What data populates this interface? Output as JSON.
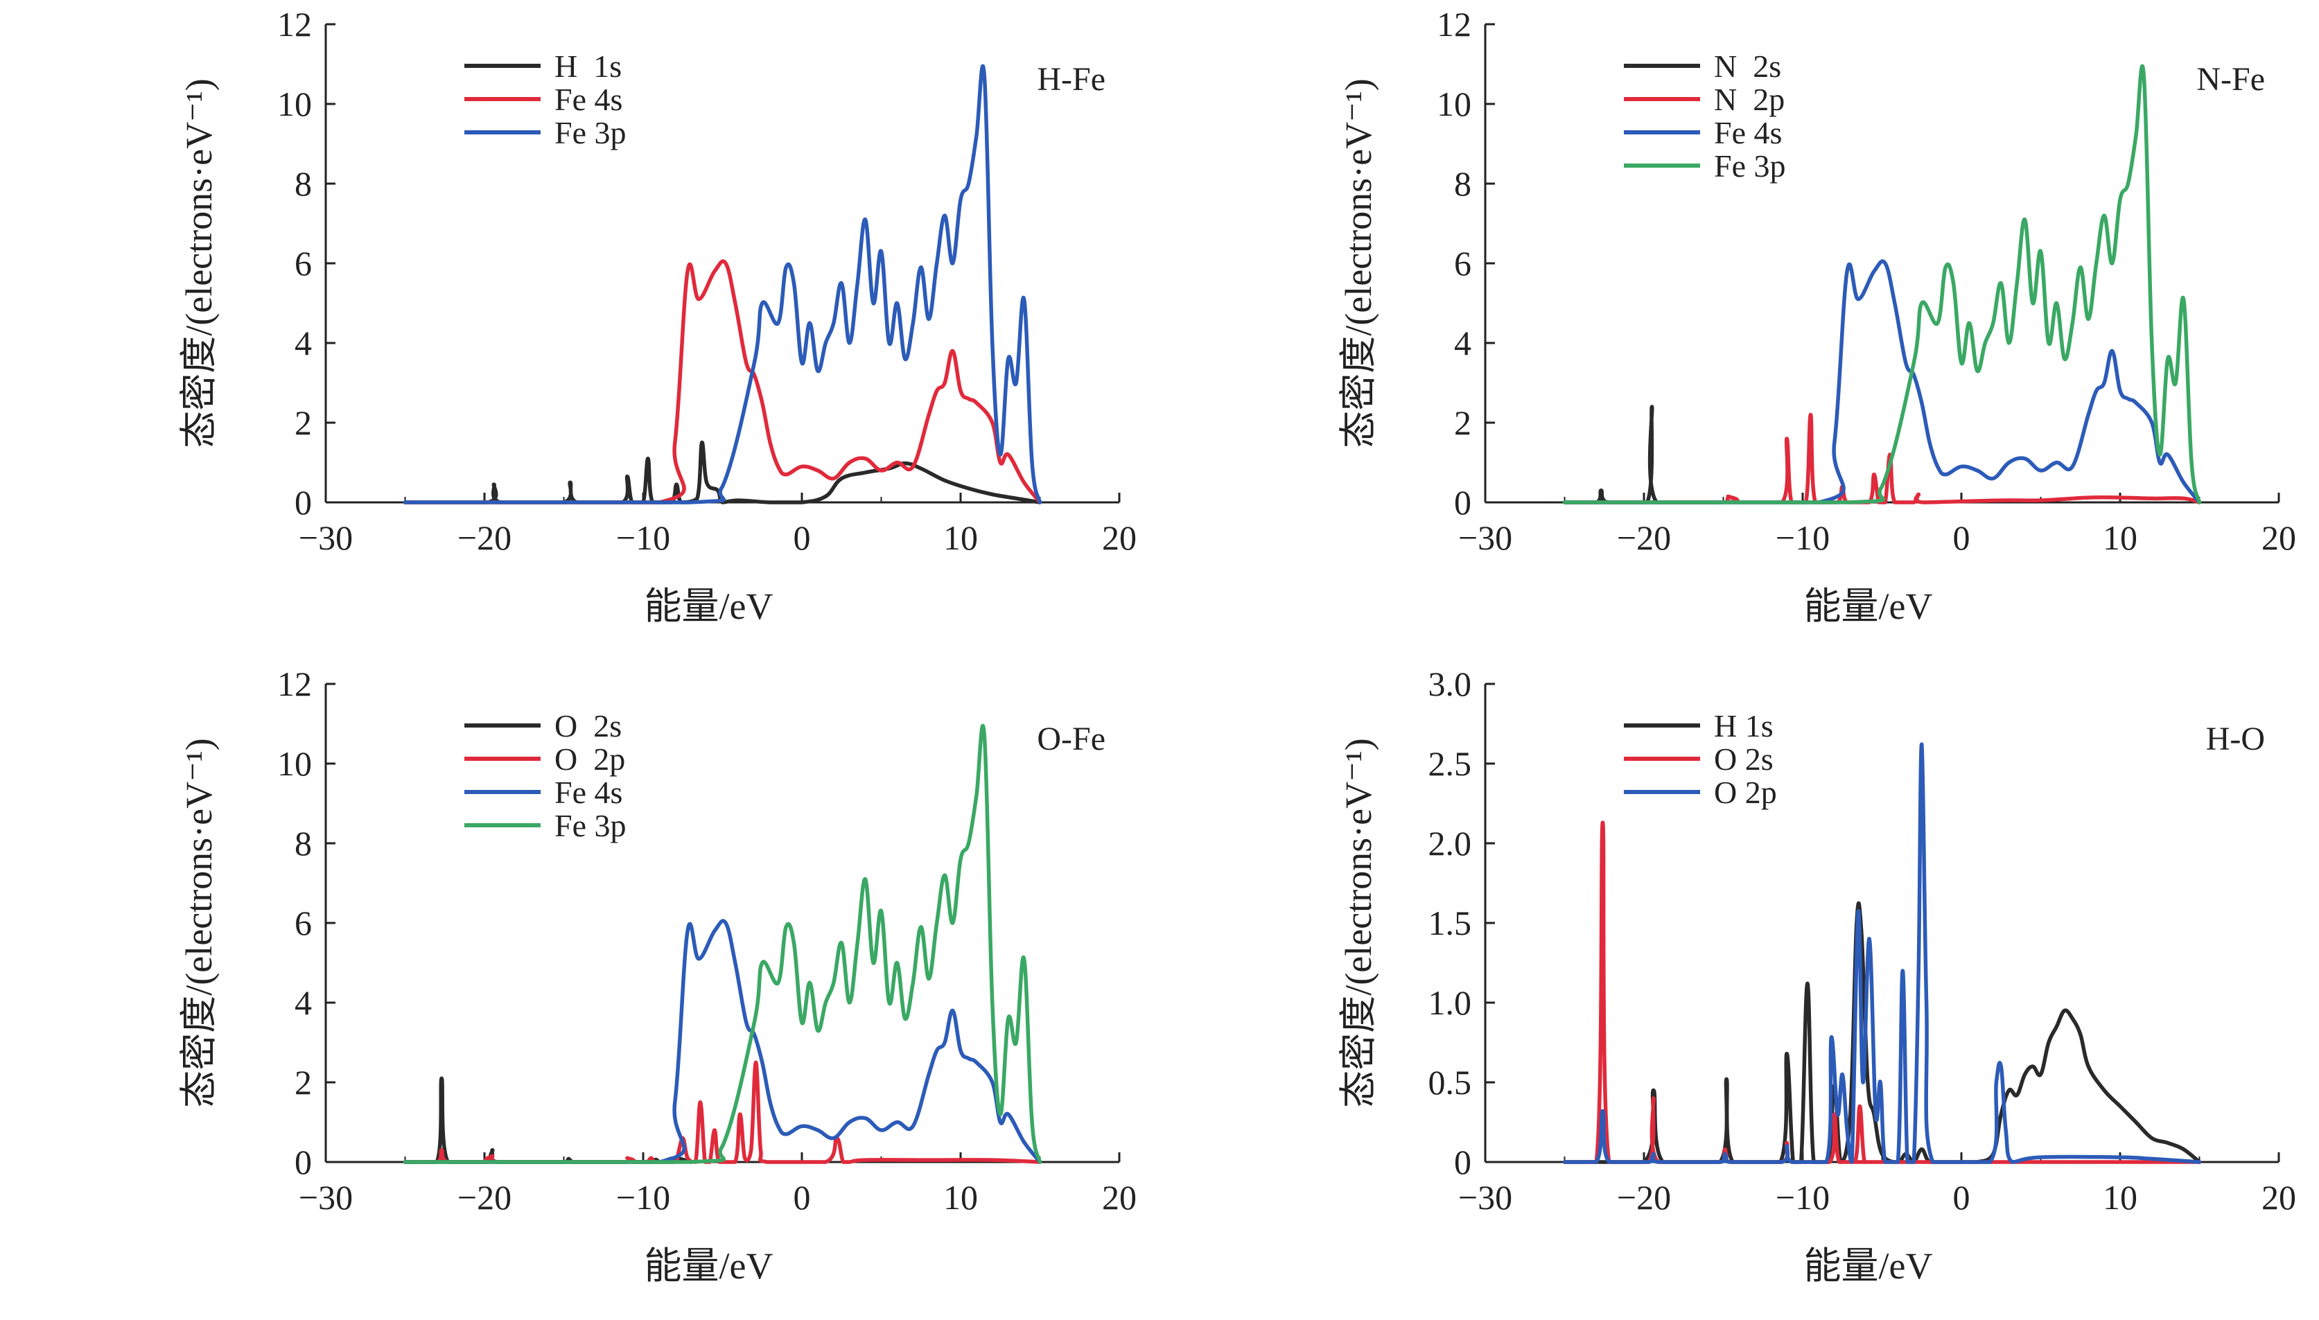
{
  "colors": {
    "black": "#2a2a2a",
    "red": "#e02a3b",
    "blue": "#2c5bb8",
    "green": "#3aa864",
    "axis": "#222222"
  },
  "chart_data": [
    {
      "type": "line",
      "title": "H-Fe",
      "xlabel": "能量/eV",
      "ylabel": "态密度/(electrons·eV⁻¹)",
      "xlim": [
        -30,
        20
      ],
      "ylim": [
        0,
        12
      ],
      "xticks": [
        "−30",
        "−20",
        "−10",
        "0",
        "10",
        "20"
      ],
      "yticks": [
        "0",
        "2",
        "4",
        "6",
        "8",
        "10",
        "12"
      ],
      "legend_position": "top-left",
      "series": [
        {
          "name": "H  1s",
          "color": "black",
          "x": [
            -25,
            -19.8,
            -19.4,
            -19,
            -15,
            -14.6,
            -14.2,
            -11.3,
            -11,
            -10.7,
            -10,
            -9.7,
            -9.4,
            -8.2,
            -7.9,
            -7.6,
            -6.6,
            -6.3,
            -6,
            -5.3,
            -5,
            -4,
            -2,
            0,
            1.5,
            2.5,
            4,
            5.5,
            6.5,
            7.5,
            9,
            10.5,
            12,
            13.5,
            15
          ],
          "y": [
            0,
            0,
            0.45,
            0,
            0,
            0.5,
            0,
            0,
            0.65,
            0,
            0,
            1.1,
            0,
            0,
            0.45,
            0,
            0.1,
            1.5,
            0.5,
            0.3,
            0,
            0.05,
            0,
            0,
            0.15,
            0.6,
            0.75,
            0.85,
            0.98,
            0.85,
            0.55,
            0.35,
            0.2,
            0.1,
            0
          ]
        },
        {
          "name": "Fe 4s",
          "color": "red",
          "x": [
            -25,
            -9,
            -8,
            -7.2,
            -6.5,
            -5.5,
            -4.8,
            -4.2,
            -3.5,
            -3,
            -2.5,
            -2,
            -1.5,
            -1,
            0,
            1,
            2,
            3,
            4,
            5,
            6,
            7,
            8,
            8.5,
            9,
            9.5,
            10,
            10.5,
            11,
            12,
            12.5,
            13,
            14,
            15
          ],
          "y": [
            0,
            0,
            1.5,
            5.8,
            5.1,
            5.8,
            6,
            5,
            3.5,
            3.2,
            2.5,
            1.5,
            0.9,
            0.7,
            0.9,
            0.8,
            0.6,
            1.0,
            1.1,
            0.8,
            1.0,
            0.9,
            2.2,
            2.8,
            3.0,
            3.8,
            2.8,
            2.6,
            2.5,
            2.0,
            1.0,
            1.2,
            0.5,
            0
          ]
        },
        {
          "name": "Fe 3p",
          "color": "blue",
          "x": [
            -25,
            -7,
            -5,
            -3,
            -2.5,
            -1.5,
            -1,
            -0.5,
            0,
            0.5,
            1,
            1.5,
            2,
            2.5,
            3,
            3.5,
            4,
            4.5,
            5,
            5.5,
            6,
            6.5,
            7,
            7.5,
            8,
            8.5,
            9,
            9.5,
            10,
            10.5,
            11,
            11.5,
            12,
            12.5,
            13,
            13.5,
            14,
            14.5,
            15
          ],
          "y": [
            0,
            0,
            0.4,
            3.5,
            5.0,
            4.5,
            5.9,
            5.5,
            3.5,
            4.5,
            3.3,
            4.0,
            4.5,
            5.5,
            4.0,
            5.5,
            7.1,
            5.0,
            6.3,
            4.0,
            5.0,
            3.6,
            4.5,
            5.9,
            4.6,
            6.0,
            7.2,
            6.0,
            7.6,
            8.0,
            9.2,
            10.7,
            4.0,
            1.2,
            3.6,
            3.0,
            5.1,
            1.0,
            0
          ]
        }
      ]
    },
    {
      "type": "line",
      "title": "N-Fe",
      "xlabel": "能量/eV",
      "ylabel": "态密度/(electrons·eV⁻¹)",
      "xlim": [
        -30,
        20
      ],
      "ylim": [
        0,
        12
      ],
      "xticks": [
        "−30",
        "−20",
        "−10",
        "0",
        "10",
        "20"
      ],
      "yticks": [
        "0",
        "2",
        "4",
        "6",
        "8",
        "10",
        "12"
      ],
      "legend_position": "top-left",
      "series": [
        {
          "name": "N  2s",
          "color": "black",
          "x": [
            -25,
            -23,
            -22.7,
            -22.3,
            -19.8,
            -19.5,
            -19.2,
            -15
          ],
          "y": [
            0,
            0,
            0.3,
            0,
            0,
            2.4,
            0,
            0
          ]
        },
        {
          "name": "N  2p",
          "color": "red",
          "x": [
            -25,
            -15,
            -14.7,
            -14.4,
            -11.3,
            -11,
            -10.7,
            -9.8,
            -9.5,
            -9.2,
            -7.8,
            -7.5,
            -7.2,
            -5.8,
            -5.5,
            -5.2,
            -4.8,
            -4.5,
            -4.2,
            -3,
            -2.7,
            -2.4,
            2.5,
            5,
            8,
            10,
            12,
            14,
            15
          ],
          "y": [
            0,
            0,
            0.15,
            0,
            0,
            1.6,
            0,
            0,
            2.2,
            0,
            0,
            0.4,
            0,
            0,
            0.7,
            0,
            0,
            1.2,
            0,
            0,
            0.2,
            0,
            0.05,
            0.05,
            0.12,
            0.12,
            0.1,
            0.1,
            0
          ]
        },
        {
          "name": "Fe 4s",
          "color": "blue",
          "x": [
            -25,
            -9,
            -8,
            -7.2,
            -6.5,
            -5.5,
            -4.8,
            -4.2,
            -3.5,
            -3,
            -2.5,
            -2,
            -1.5,
            -1,
            0,
            1,
            2,
            3,
            4,
            5,
            6,
            7,
            8,
            8.5,
            9,
            9.5,
            10,
            10.5,
            11,
            12,
            12.5,
            13,
            14,
            15
          ],
          "y": [
            0,
            0,
            1.5,
            5.8,
            5.1,
            5.8,
            6,
            5,
            3.5,
            3.2,
            2.5,
            1.5,
            0.9,
            0.7,
            0.9,
            0.8,
            0.6,
            1.0,
            1.1,
            0.8,
            1.0,
            0.9,
            2.2,
            2.8,
            3.0,
            3.8,
            2.8,
            2.6,
            2.5,
            2.0,
            1.0,
            1.2,
            0.5,
            0
          ]
        },
        {
          "name": "Fe 3p",
          "color": "green",
          "x": [
            -25,
            -7,
            -5,
            -3,
            -2.5,
            -1.5,
            -1,
            -0.5,
            0,
            0.5,
            1,
            1.5,
            2,
            2.5,
            3,
            3.5,
            4,
            4.5,
            5,
            5.5,
            6,
            6.5,
            7,
            7.5,
            8,
            8.5,
            9,
            9.5,
            10,
            10.5,
            11,
            11.5,
            12,
            12.5,
            13,
            13.5,
            14,
            14.5,
            15
          ],
          "y": [
            0,
            0,
            0.4,
            3.5,
            5.0,
            4.5,
            5.9,
            5.5,
            3.5,
            4.5,
            3.3,
            4.0,
            4.5,
            5.5,
            4.0,
            5.5,
            7.1,
            5.0,
            6.3,
            4.0,
            5.0,
            3.6,
            4.5,
            5.9,
            4.6,
            6.0,
            7.2,
            6.0,
            7.6,
            8.0,
            9.2,
            10.7,
            4.0,
            1.2,
            3.6,
            3.0,
            5.1,
            1.0,
            0
          ]
        }
      ]
    },
    {
      "type": "line",
      "title": "O-Fe",
      "xlabel": "能量/eV",
      "ylabel": "态密度/(electrons·eV⁻¹)",
      "xlim": [
        -30,
        20
      ],
      "ylim": [
        0,
        12
      ],
      "xticks": [
        "−30",
        "−20",
        "−10",
        "0",
        "10",
        "20"
      ],
      "yticks": [
        "0",
        "2",
        "4",
        "6",
        "8",
        "10",
        "12"
      ],
      "legend_position": "top-left",
      "series": [
        {
          "name": "O  2s",
          "color": "black",
          "x": [
            -25,
            -23,
            -22.7,
            -22.3,
            -19.8,
            -19.5,
            -19.2,
            -15,
            -14.7,
            -14.4,
            -11,
            -10.7,
            -10.4,
            -9.5,
            -9.2,
            -8.9,
            -8,
            -7
          ],
          "y": [
            0,
            0,
            2.1,
            0,
            0,
            0.3,
            0,
            0,
            0.08,
            0,
            0,
            0.05,
            0,
            0,
            0.06,
            0,
            0.1,
            0
          ]
        },
        {
          "name": "O  2p",
          "color": "red",
          "x": [
            -25,
            -23,
            -22.7,
            -22.3,
            -19.8,
            -19.5,
            -19.2,
            -11.3,
            -11,
            -10.7,
            -9.8,
            -9.5,
            -9.2,
            -8,
            -7.8,
            -7.5,
            -7.2,
            -6.7,
            -6.4,
            -6.1,
            -5.8,
            -5.5,
            -5.2,
            -4.2,
            -3.9,
            -3.6,
            -3.2,
            -2.9,
            -2.6,
            -2.2,
            1.5,
            2.2,
            2.6,
            3,
            4,
            8,
            12,
            15
          ],
          "y": [
            0,
            0,
            0.3,
            0,
            0,
            0.15,
            0,
            0,
            0.1,
            0,
            0,
            0.1,
            0,
            0,
            0.2,
            0.6,
            0.1,
            0,
            1.5,
            0,
            0,
            0.8,
            0,
            0,
            1.2,
            0.1,
            0.3,
            2.5,
            0.3,
            0,
            0,
            0.6,
            0,
            0,
            0.05,
            0.05,
            0.05,
            0
          ]
        },
        {
          "name": "Fe 4s",
          "color": "blue",
          "x": [
            -25,
            -9,
            -8,
            -7.2,
            -6.5,
            -5.5,
            -4.8,
            -4.2,
            -3.5,
            -3,
            -2.5,
            -2,
            -1.5,
            -1,
            0,
            1,
            2,
            3,
            4,
            5,
            6,
            7,
            8,
            8.5,
            9,
            9.5,
            10,
            10.5,
            11,
            12,
            12.5,
            13,
            14,
            15
          ],
          "y": [
            0,
            0,
            1.5,
            5.8,
            5.1,
            5.8,
            6,
            5,
            3.5,
            3.2,
            2.5,
            1.5,
            0.9,
            0.7,
            0.9,
            0.8,
            0.6,
            1.0,
            1.1,
            0.8,
            1.0,
            0.9,
            2.2,
            2.8,
            3.0,
            3.8,
            2.8,
            2.6,
            2.5,
            2.0,
            1.0,
            1.2,
            0.5,
            0
          ]
        },
        {
          "name": "Fe 3p",
          "color": "green",
          "x": [
            -25,
            -7,
            -5,
            -3,
            -2.5,
            -1.5,
            -1,
            -0.5,
            0,
            0.5,
            1,
            1.5,
            2,
            2.5,
            3,
            3.5,
            4,
            4.5,
            5,
            5.5,
            6,
            6.5,
            7,
            7.5,
            8,
            8.5,
            9,
            9.5,
            10,
            10.5,
            11,
            11.5,
            12,
            12.5,
            13,
            13.5,
            14,
            14.5,
            15
          ],
          "y": [
            0,
            0,
            0.4,
            3.5,
            5.0,
            4.5,
            5.9,
            5.5,
            3.5,
            4.5,
            3.3,
            4.0,
            4.5,
            5.5,
            4.0,
            5.5,
            7.1,
            5.0,
            6.3,
            4.0,
            5.0,
            3.6,
            4.5,
            5.9,
            4.6,
            6.0,
            7.2,
            6.0,
            7.6,
            8.0,
            9.2,
            10.7,
            4.0,
            1.2,
            3.6,
            3.0,
            5.1,
            1.0,
            0
          ]
        }
      ]
    },
    {
      "type": "line",
      "title": "H-O",
      "xlabel": "能量/eV",
      "ylabel": "态密度/(electrons·eV⁻¹)",
      "xlim": [
        -30,
        20
      ],
      "ylim": [
        0,
        3.0
      ],
      "xticks": [
        "−30",
        "−20",
        "−10",
        "0",
        "10",
        "20"
      ],
      "yticks": [
        "0",
        "0.5",
        "1.0",
        "1.5",
        "2.0",
        "2.5",
        "3.0"
      ],
      "legend_position": "top-left",
      "series": [
        {
          "name": "H 1s",
          "color": "black",
          "x": [
            -25,
            -20,
            -19.4,
            -18.8,
            -15.2,
            -14.8,
            -14.4,
            -11.4,
            -11,
            -10.6,
            -10.1,
            -9.7,
            -9.3,
            -8.4,
            -8,
            -7.6,
            -7,
            -6.6,
            -6.3,
            -5.9,
            -5.5,
            -5,
            -4,
            -3.5,
            -3,
            -2.5,
            -2,
            -1,
            0,
            1,
            2,
            2.5,
            3,
            3.5,
            4,
            4.5,
            5,
            5.5,
            6,
            6.5,
            7,
            7.5,
            8,
            9,
            10,
            11,
            12,
            13,
            14,
            15
          ],
          "y": [
            0,
            0,
            0.45,
            0,
            0,
            0.52,
            0,
            0,
            0.68,
            0,
            0,
            1.12,
            0,
            0,
            0.48,
            0,
            0.3,
            1.5,
            1.45,
            0.5,
            0.3,
            0.05,
            0,
            0.05,
            0,
            0.08,
            0,
            0,
            0,
            0,
            0.05,
            0.3,
            0.45,
            0.42,
            0.55,
            0.6,
            0.55,
            0.75,
            0.85,
            0.95,
            0.9,
            0.8,
            0.6,
            0.45,
            0.35,
            0.25,
            0.15,
            0.12,
            0.08,
            0
          ]
        },
        {
          "name": "O 2s",
          "color": "red",
          "x": [
            -25,
            -23,
            -22.6,
            -22.2,
            -19.7,
            -19.4,
            -19.1,
            -15.2,
            -14.9,
            -14.6,
            -11.3,
            -11,
            -10.7,
            -8.3,
            -8,
            -7.7,
            -6.7,
            -6.4,
            -6.1,
            -5.5,
            15
          ],
          "y": [
            0,
            0,
            2.13,
            0,
            0,
            0.4,
            0,
            0,
            0.08,
            0,
            0,
            0.12,
            0,
            0,
            0.3,
            0,
            0,
            0.35,
            0,
            0,
            0
          ]
        },
        {
          "name": "O 2p",
          "color": "blue",
          "x": [
            -25,
            -23,
            -22.6,
            -22.2,
            -19.7,
            -19.4,
            -19.1,
            -15.2,
            -14.9,
            -14.6,
            -11.3,
            -11,
            -10.7,
            -8.5,
            -8.2,
            -7.8,
            -7.5,
            -7.2,
            -6.9,
            -6.5,
            -6.2,
            -5.8,
            -5.4,
            -5.1,
            -4.8,
            -4,
            -3.7,
            -3.4,
            -3,
            -2.7,
            -2.5,
            -2.2,
            -1.8,
            1.8,
            2.2,
            2.5,
            2.8,
            3.2,
            5,
            10,
            12,
            15
          ],
          "y": [
            0,
            0,
            0.32,
            0,
            0,
            0.05,
            0,
            0,
            0.05,
            0,
            0,
            0.1,
            0,
            0,
            0.78,
            0.3,
            0.55,
            0.2,
            0,
            1.57,
            0.5,
            1.4,
            0.3,
            0.5,
            0,
            0,
            1.2,
            0,
            0,
            1.2,
            2.62,
            1.0,
            0,
            0,
            0.5,
            0.6,
            0.2,
            0,
            0.03,
            0.03,
            0.02,
            0
          ]
        }
      ]
    }
  ]
}
